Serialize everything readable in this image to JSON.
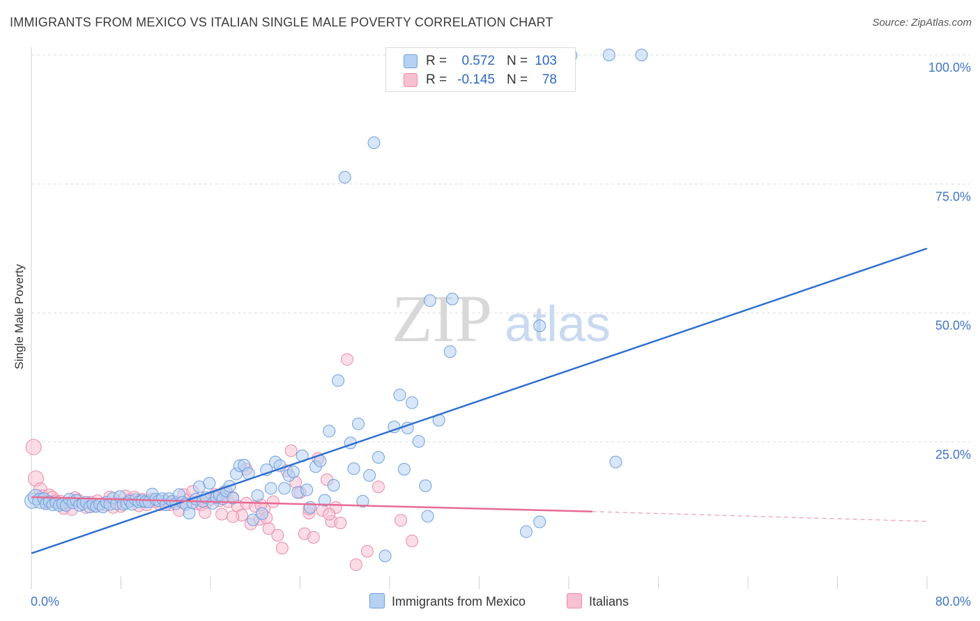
{
  "header": {
    "title": "IMMIGRANTS FROM MEXICO VS ITALIAN SINGLE MALE POVERTY CORRELATION CHART",
    "source": "Source: ZipAtlas.com"
  },
  "watermark": {
    "zip": "ZIP",
    "atlas": "atlas"
  },
  "legend": {
    "rows": [
      {
        "r_label": "R =",
        "r_value": "0.572",
        "n_label": "N =",
        "n_value": "103"
      },
      {
        "r_label": "R =",
        "r_value": "-0.145",
        "n_label": "N =",
        "n_value": "78"
      }
    ]
  },
  "bottom_legend": {
    "series_a": "Immigrants from Mexico",
    "series_b": "Italians"
  },
  "colors": {
    "blue_fill": "#b7d1f2",
    "blue_stroke": "#6f9fdc",
    "blue_line": "#2f6fd0",
    "pink_fill": "#f7c1d2",
    "pink_stroke": "#e98aab",
    "pink_line": "#e86a93",
    "axis_text": "#3f75c9",
    "grid": "#dcdcdc"
  },
  "chart_data": {
    "type": "scatter",
    "title": "IMMIGRANTS FROM MEXICO VS ITALIAN SINGLE MALE POVERTY CORRELATION CHART",
    "xlabel": "",
    "ylabel": "Single Male Poverty",
    "xlim": [
      0,
      80
    ],
    "ylim": [
      0,
      100
    ],
    "x_tick_labels": [
      "0.0%",
      "80.0%"
    ],
    "y_tick_labels": [
      "25.0%",
      "50.0%",
      "75.0%",
      "100.0%"
    ],
    "y_tick_values": [
      25,
      50,
      75,
      100
    ],
    "grid": true,
    "legend_position": "top-center",
    "series": [
      {
        "name": "Immigrants from Mexico",
        "color": "#b7d1f2",
        "trend": {
          "x": [
            0,
            80
          ],
          "y": [
            3.4,
            62.5
          ]
        },
        "points": [
          [
            0.1,
            13.6
          ],
          [
            0.4,
            14.3
          ],
          [
            0.8,
            13.6
          ],
          [
            1.1,
            14.0
          ],
          [
            1.3,
            13.0
          ],
          [
            1.6,
            13.4
          ],
          [
            1.9,
            12.8
          ],
          [
            2.2,
            13.2
          ],
          [
            2.5,
            12.7
          ],
          [
            2.8,
            13.0
          ],
          [
            3.1,
            12.7
          ],
          [
            3.4,
            13.9
          ],
          [
            3.7,
            13.2
          ],
          [
            4.0,
            13.7
          ],
          [
            4.3,
            12.7
          ],
          [
            4.6,
            13.0
          ],
          [
            4.9,
            13.3
          ],
          [
            5.2,
            12.4
          ],
          [
            5.5,
            12.9
          ],
          [
            5.8,
            12.5
          ],
          [
            6.1,
            12.9
          ],
          [
            6.4,
            12.4
          ],
          [
            6.7,
            13.3
          ],
          [
            7.0,
            12.9
          ],
          [
            7.3,
            14.1
          ],
          [
            7.6,
            13.0
          ],
          [
            7.9,
            14.4
          ],
          [
            8.2,
            12.9
          ],
          [
            8.5,
            13.1
          ],
          [
            8.8,
            13.5
          ],
          [
            9.0,
            12.9
          ],
          [
            9.3,
            13.8
          ],
          [
            9.6,
            13.4
          ],
          [
            9.9,
            13.6
          ],
          [
            10.2,
            13.4
          ],
          [
            10.5,
            13.4
          ],
          [
            10.8,
            14.9
          ],
          [
            11.1,
            13.9
          ],
          [
            11.4,
            13.6
          ],
          [
            11.7,
            14.0
          ],
          [
            12.0,
            12.8
          ],
          [
            12.3,
            14.0
          ],
          [
            12.6,
            13.5
          ],
          [
            12.9,
            13.0
          ],
          [
            13.2,
            14.8
          ],
          [
            13.5,
            13.3
          ],
          [
            13.8,
            12.9
          ],
          [
            14.1,
            11.2
          ],
          [
            14.4,
            13.2
          ],
          [
            14.7,
            13.9
          ],
          [
            15.0,
            16.3
          ],
          [
            15.3,
            13.5
          ],
          [
            15.6,
            14.2
          ],
          [
            15.9,
            17.0
          ],
          [
            16.2,
            13.1
          ],
          [
            16.5,
            14.2
          ],
          [
            16.8,
            14.7
          ],
          [
            17.1,
            14.0
          ],
          [
            17.4,
            15.5
          ],
          [
            17.7,
            16.4
          ],
          [
            18.0,
            14.1
          ],
          [
            18.3,
            18.8
          ],
          [
            18.6,
            20.4
          ],
          [
            19.0,
            20.5
          ],
          [
            19.4,
            18.9
          ],
          [
            19.8,
            9.9
          ],
          [
            20.2,
            14.6
          ],
          [
            20.6,
            11.1
          ],
          [
            21.0,
            19.6
          ],
          [
            21.4,
            16.0
          ],
          [
            21.8,
            21.1
          ],
          [
            22.2,
            20.4
          ],
          [
            22.6,
            16.0
          ],
          [
            23.0,
            18.5
          ],
          [
            23.4,
            19.2
          ],
          [
            23.8,
            15.2
          ],
          [
            24.2,
            22.3
          ],
          [
            24.6,
            15.7
          ],
          [
            24.9,
            12.3
          ],
          [
            25.4,
            20.2
          ],
          [
            25.8,
            21.3
          ],
          [
            26.2,
            13.7
          ],
          [
            26.6,
            27.1
          ],
          [
            27.0,
            16.6
          ],
          [
            27.4,
            36.9
          ],
          [
            28.0,
            76.3
          ],
          [
            28.5,
            24.8
          ],
          [
            28.8,
            19.8
          ],
          [
            29.2,
            28.5
          ],
          [
            29.6,
            13.5
          ],
          [
            30.2,
            18.5
          ],
          [
            30.6,
            83.0
          ],
          [
            31.0,
            22.0
          ],
          [
            31.6,
            2.9
          ],
          [
            32.4,
            27.9
          ],
          [
            32.9,
            34.1
          ],
          [
            33.3,
            19.7
          ],
          [
            33.6,
            27.7
          ],
          [
            34.0,
            32.6
          ],
          [
            34.6,
            25.1
          ],
          [
            35.2,
            16.5
          ],
          [
            35.4,
            10.6
          ],
          [
            35.6,
            52.4
          ],
          [
            36.4,
            29.2
          ],
          [
            37.4,
            42.5
          ],
          [
            37.6,
            52.7
          ],
          [
            48.2,
            99.9
          ],
          [
            42.7,
            100.0
          ],
          [
            43.6,
            100.0
          ],
          [
            51.6,
            100.0
          ],
          [
            45.4,
            47.5
          ],
          [
            54.5,
            100.0
          ],
          [
            52.2,
            21.1
          ],
          [
            45.4,
            9.5
          ],
          [
            44.2,
            7.6
          ]
        ]
      },
      {
        "name": "Italians",
        "color": "#f7c1d2",
        "trend": {
          "x": [
            0,
            50.1
          ],
          "y": [
            14.3,
            11.5
          ]
        },
        "trend_dashed": {
          "x": [
            50.1,
            80
          ],
          "y": [
            11.5,
            9.6
          ]
        },
        "points": [
          [
            0.2,
            24.0
          ],
          [
            0.4,
            17.9
          ],
          [
            0.8,
            15.8
          ],
          [
            1.0,
            14.4
          ],
          [
            1.3,
            13.3
          ],
          [
            1.6,
            14.6
          ],
          [
            1.9,
            14.3
          ],
          [
            2.2,
            13.6
          ],
          [
            2.6,
            13.5
          ],
          [
            2.9,
            12.1
          ],
          [
            3.3,
            13.2
          ],
          [
            3.6,
            11.9
          ],
          [
            3.9,
            14.2
          ],
          [
            4.2,
            13.7
          ],
          [
            4.6,
            13.0
          ],
          [
            4.9,
            12.3
          ],
          [
            5.3,
            13.3
          ],
          [
            5.6,
            12.5
          ],
          [
            5.9,
            13.6
          ],
          [
            6.3,
            13.0
          ],
          [
            6.6,
            12.8
          ],
          [
            7.0,
            14.3
          ],
          [
            7.3,
            12.3
          ],
          [
            7.6,
            13.4
          ],
          [
            8.0,
            12.5
          ],
          [
            8.4,
            14.5
          ],
          [
            8.8,
            13.8
          ],
          [
            9.2,
            14.3
          ],
          [
            9.6,
            12.6
          ],
          [
            9.9,
            13.9
          ],
          [
            10.3,
            12.8
          ],
          [
            10.7,
            13.9
          ],
          [
            11.1,
            13.4
          ],
          [
            11.5,
            12.8
          ],
          [
            11.9,
            13.6
          ],
          [
            12.4,
            12.8
          ],
          [
            12.8,
            13.4
          ],
          [
            13.2,
            11.7
          ],
          [
            13.6,
            14.8
          ],
          [
            14.0,
            13.8
          ],
          [
            14.4,
            15.4
          ],
          [
            14.8,
            13.0
          ],
          [
            15.2,
            12.8
          ],
          [
            15.6,
            13.2
          ],
          [
            16.0,
            13.9
          ],
          [
            16.4,
            14.8
          ],
          [
            16.8,
            13.6
          ],
          [
            17.2,
            15.3
          ],
          [
            17.6,
            13.4
          ],
          [
            18.0,
            14.2
          ],
          [
            18.4,
            12.6
          ],
          [
            18.8,
            10.8
          ],
          [
            19.2,
            13.1
          ],
          [
            19.6,
            9.1
          ],
          [
            20.0,
            12.5
          ],
          [
            20.4,
            10.0
          ],
          [
            20.8,
            12.0
          ],
          [
            21.2,
            8.2
          ],
          [
            21.6,
            13.4
          ],
          [
            22.0,
            6.9
          ],
          [
            22.4,
            4.4
          ],
          [
            22.8,
            19.4
          ],
          [
            23.2,
            23.3
          ],
          [
            23.6,
            17.2
          ],
          [
            24.0,
            15.2
          ],
          [
            24.4,
            7.2
          ],
          [
            24.8,
            11.2
          ],
          [
            25.2,
            6.5
          ],
          [
            25.6,
            21.8
          ],
          [
            26.0,
            11.7
          ],
          [
            26.4,
            17.7
          ],
          [
            26.8,
            9.6
          ],
          [
            27.2,
            12.3
          ],
          [
            27.6,
            9.3
          ],
          [
            28.2,
            41.0
          ],
          [
            29.0,
            1.2
          ],
          [
            30.0,
            3.8
          ],
          [
            31.0,
            16.3
          ],
          [
            33.0,
            9.8
          ],
          [
            34.0,
            5.8
          ],
          [
            15.5,
            11.3
          ],
          [
            17.0,
            11.0
          ],
          [
            18.0,
            10.5
          ],
          [
            20.5,
            12.8
          ],
          [
            24.8,
            12.0
          ],
          [
            26.6,
            11.0
          ],
          [
            21.0,
            10.3
          ],
          [
            19.2,
            19.7
          ]
        ]
      }
    ]
  }
}
